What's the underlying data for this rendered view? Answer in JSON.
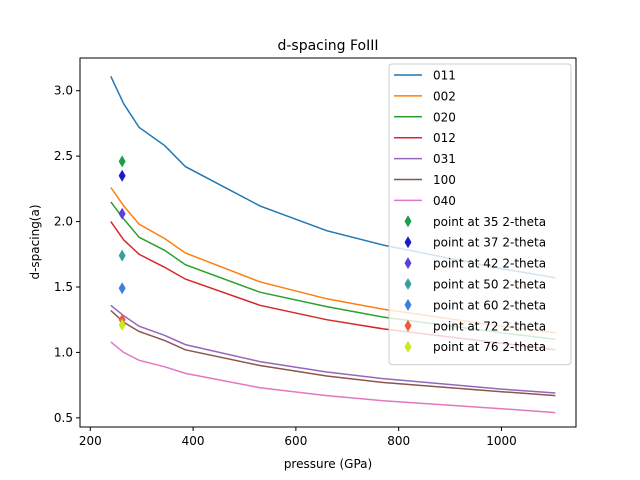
{
  "chart_data": {
    "type": "line",
    "title": "d-spacing FoIII",
    "xlabel": "pressure (GPa)",
    "ylabel": "d-spacing(a)",
    "xlim": [
      180,
      1145
    ],
    "ylim": [
      0.43,
      3.25
    ],
    "xticks": [
      200,
      400,
      600,
      800,
      1000
    ],
    "yticks": [
      0.5,
      1.0,
      1.5,
      2.0,
      2.5,
      3.0
    ],
    "grid": false,
    "legend_position": "top-right",
    "x": [
      240,
      265,
      295,
      345,
      385,
      530,
      660,
      770,
      1000,
      1105
    ],
    "series": [
      {
        "name": "011",
        "color": "#1f77b4",
        "values": [
          3.11,
          2.9,
          2.72,
          2.58,
          2.42,
          2.12,
          1.93,
          1.82,
          1.64,
          1.57
        ]
      },
      {
        "name": "002",
        "color": "#ff7f0e",
        "values": [
          2.26,
          2.12,
          1.98,
          1.87,
          1.76,
          1.54,
          1.41,
          1.33,
          1.2,
          1.15
        ]
      },
      {
        "name": "020",
        "color": "#2ca02c",
        "values": [
          2.15,
          2.02,
          1.88,
          1.78,
          1.67,
          1.46,
          1.35,
          1.27,
          1.15,
          1.1
        ]
      },
      {
        "name": "012",
        "color": "#d62728",
        "values": [
          2.0,
          1.86,
          1.75,
          1.65,
          1.56,
          1.36,
          1.25,
          1.18,
          1.07,
          1.02
        ]
      },
      {
        "name": "031",
        "color": "#9467bd",
        "values": [
          1.36,
          1.28,
          1.2,
          1.13,
          1.06,
          0.93,
          0.85,
          0.8,
          0.72,
          0.69
        ]
      },
      {
        "name": "100",
        "color": "#8c564b",
        "values": [
          1.32,
          1.23,
          1.16,
          1.09,
          1.02,
          0.9,
          0.82,
          0.77,
          0.7,
          0.67
        ]
      },
      {
        "name": "040",
        "color": "#e377c2",
        "values": [
          1.08,
          1.0,
          0.94,
          0.89,
          0.84,
          0.73,
          0.67,
          0.63,
          0.57,
          0.54
        ]
      }
    ],
    "points": [
      {
        "name": "point at 35 2-theta",
        "color": "#1a9e4a",
        "x": 262,
        "y": 2.46
      },
      {
        "name": "point at 37 2-theta",
        "color": "#1a1acd",
        "x": 262,
        "y": 2.35
      },
      {
        "name": "point at 42 2-theta",
        "color": "#5f3ee0",
        "x": 262,
        "y": 2.06
      },
      {
        "name": "point at 50 2-theta",
        "color": "#3a9e9e",
        "x": 262,
        "y": 1.74
      },
      {
        "name": "point at 60 2-theta",
        "color": "#3a7ee6",
        "x": 262,
        "y": 1.49
      },
      {
        "name": "point at 72 2-theta",
        "color": "#f05a3e",
        "x": 262,
        "y": 1.25
      },
      {
        "name": "point at 76 2-theta",
        "color": "#c6ec1e",
        "x": 262,
        "y": 1.21
      }
    ]
  }
}
